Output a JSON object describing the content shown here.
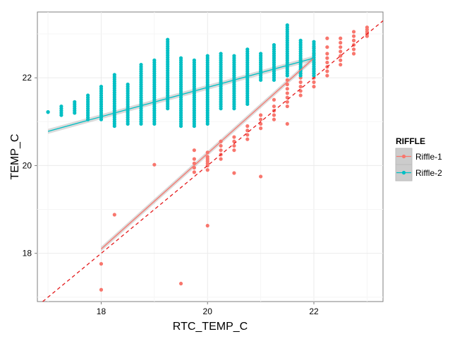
{
  "chart_data": {
    "type": "scatter",
    "title": "",
    "xlabel": "RTC_TEMP_C",
    "ylabel": "TEMP_C",
    "xlim": [
      16.8,
      23.3
    ],
    "ylim": [
      16.9,
      23.5
    ],
    "x_ticks": [
      18,
      20,
      22
    ],
    "y_ticks": [
      18,
      20,
      22
    ],
    "x_tick_labels": [
      "18",
      "20",
      "22"
    ],
    "y_tick_labels": [
      "18",
      "20",
      "22"
    ],
    "grid": true,
    "legend": {
      "title": "RIFFLE",
      "position": "right",
      "entries": [
        "Riffle-1",
        "Riffle-2"
      ]
    },
    "colors": {
      "Riffle-1": "#F8766D",
      "Riffle-2": "#00BFC4",
      "fit_band": "#999999"
    },
    "identity_line": {
      "slope": 1,
      "intercept": 0,
      "style": "dashed",
      "color": "#e41a1c",
      "from": [
        16.8,
        16.8
      ],
      "to": [
        23.3,
        23.3
      ]
    },
    "series": [
      {
        "name": "Riffle-1",
        "color": "#F8766D",
        "points": [
          [
            18.0,
            17.17
          ],
          [
            18.0,
            17.76
          ],
          [
            18.25,
            18.88
          ],
          [
            19.0,
            20.02
          ],
          [
            19.5,
            17.31
          ],
          [
            19.75,
            19.85
          ],
          [
            19.75,
            19.95
          ],
          [
            19.75,
            20.05
          ],
          [
            19.75,
            20.15
          ],
          [
            19.75,
            20.35
          ],
          [
            20.0,
            18.63
          ],
          [
            20.0,
            19.9
          ],
          [
            20.0,
            20.0
          ],
          [
            20.0,
            20.05
          ],
          [
            20.0,
            20.1
          ],
          [
            20.0,
            20.15
          ],
          [
            20.0,
            20.2
          ],
          [
            20.0,
            20.3
          ],
          [
            20.25,
            20.15
          ],
          [
            20.25,
            20.25
          ],
          [
            20.25,
            20.35
          ],
          [
            20.25,
            20.45
          ],
          [
            20.25,
            20.55
          ],
          [
            20.5,
            20.35
          ],
          [
            20.5,
            20.45
          ],
          [
            20.5,
            20.55
          ],
          [
            20.5,
            20.65
          ],
          [
            20.5,
            19.83
          ],
          [
            20.75,
            20.6
          ],
          [
            20.75,
            20.7
          ],
          [
            20.75,
            20.8
          ],
          [
            20.75,
            20.9
          ],
          [
            21.0,
            19.75
          ],
          [
            21.0,
            20.85
          ],
          [
            21.0,
            20.95
          ],
          [
            21.0,
            21.05
          ],
          [
            21.0,
            21.15
          ],
          [
            21.25,
            21.05
          ],
          [
            21.25,
            21.15
          ],
          [
            21.25,
            21.25
          ],
          [
            21.25,
            21.35
          ],
          [
            21.25,
            21.5
          ],
          [
            21.5,
            20.95
          ],
          [
            21.5,
            21.35
          ],
          [
            21.5,
            21.45
          ],
          [
            21.5,
            21.55
          ],
          [
            21.5,
            21.65
          ],
          [
            21.5,
            21.75
          ],
          [
            21.5,
            21.85
          ],
          [
            21.5,
            21.95
          ],
          [
            21.75,
            21.6
          ],
          [
            21.75,
            21.7
          ],
          [
            21.75,
            21.8
          ],
          [
            21.75,
            21.9
          ],
          [
            21.75,
            22.0
          ],
          [
            21.75,
            22.1
          ],
          [
            22.0,
            21.8
          ],
          [
            22.0,
            21.9
          ],
          [
            22.0,
            22.0
          ],
          [
            22.0,
            22.1
          ],
          [
            22.0,
            22.2
          ],
          [
            22.0,
            22.35
          ],
          [
            22.0,
            22.55
          ],
          [
            22.0,
            22.68
          ],
          [
            22.25,
            22.05
          ],
          [
            22.25,
            22.15
          ],
          [
            22.25,
            22.25
          ],
          [
            22.25,
            22.35
          ],
          [
            22.25,
            22.45
          ],
          [
            22.25,
            22.55
          ],
          [
            22.25,
            22.7
          ],
          [
            22.25,
            22.9
          ],
          [
            22.5,
            22.3
          ],
          [
            22.5,
            22.4
          ],
          [
            22.5,
            22.5
          ],
          [
            22.5,
            22.6
          ],
          [
            22.5,
            22.7
          ],
          [
            22.5,
            22.8
          ],
          [
            22.5,
            22.9
          ],
          [
            22.75,
            22.55
          ],
          [
            22.75,
            22.65
          ],
          [
            22.75,
            22.75
          ],
          [
            22.75,
            22.85
          ],
          [
            22.75,
            22.95
          ],
          [
            22.75,
            23.05
          ],
          [
            23.0,
            22.95
          ],
          [
            23.0,
            23.0
          ],
          [
            23.0,
            23.05
          ],
          [
            23.0,
            23.1
          ],
          [
            23.0,
            23.15
          ]
        ],
        "fit": {
          "x": [
            18.0,
            22.0
          ],
          "y": [
            18.1,
            22.45
          ]
        }
      },
      {
        "name": "Riffle-2",
        "color": "#00BFC4",
        "columns": [
          [
            17.0,
            21.22,
            21.22
          ],
          [
            17.25,
            21.15,
            21.35
          ],
          [
            17.5,
            21.2,
            21.45
          ],
          [
            17.75,
            21.05,
            21.6
          ],
          [
            18.0,
            21.05,
            21.8
          ],
          [
            18.25,
            20.9,
            22.07
          ],
          [
            18.5,
            20.95,
            21.85
          ],
          [
            18.75,
            20.95,
            22.3
          ],
          [
            19.0,
            20.95,
            22.4
          ],
          [
            19.25,
            21.3,
            22.87
          ],
          [
            19.5,
            20.9,
            22.45
          ],
          [
            19.75,
            20.9,
            22.4
          ],
          [
            20.0,
            20.95,
            22.5
          ],
          [
            20.25,
            21.3,
            22.55
          ],
          [
            20.5,
            21.3,
            22.5
          ],
          [
            20.75,
            21.4,
            22.65
          ],
          [
            21.0,
            21.95,
            22.55
          ],
          [
            21.25,
            21.95,
            22.75
          ],
          [
            21.5,
            22.05,
            23.2
          ],
          [
            21.75,
            22.05,
            22.85
          ],
          [
            22.0,
            22.05,
            22.82
          ]
        ],
        "fit": {
          "x": [
            17.0,
            22.0
          ],
          "y": [
            20.78,
            22.45
          ]
        }
      }
    ]
  }
}
